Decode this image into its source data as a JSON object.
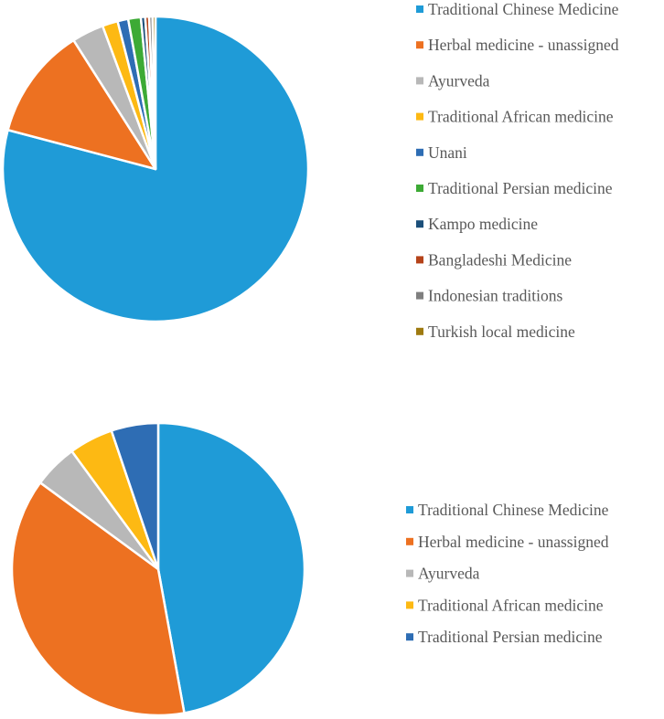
{
  "chart_data": [
    {
      "type": "pie",
      "title": "",
      "slices": [
        {
          "label": "Traditional Chinese Medicine",
          "value": 77.3,
          "color": "#1F9BD7"
        },
        {
          "label": "Herbal medicine - unassigned",
          "value": 11.6,
          "color": "#ED7121"
        },
        {
          "label": "Ayurveda",
          "value": 3.3,
          "color": "#B8B8B8"
        },
        {
          "label": "Traditional African medicine",
          "value": 1.6,
          "color": "#FDB913"
        },
        {
          "label": "Unani",
          "value": 1.1,
          "color": "#2E6DB4"
        },
        {
          "label": "Traditional Persian medicine",
          "value": 1.3,
          "color": "#3DAA35"
        },
        {
          "label": "Kampo medicine",
          "value": 0.45,
          "color": "#1B4F7A"
        },
        {
          "label": "Bangladeshi Medicine",
          "value": 0.4,
          "color": "#B5431A"
        },
        {
          "label": "Indonesian traditions",
          "value": 0.35,
          "color": "#7F7F7F"
        },
        {
          "label": "Turkish local medicine",
          "value": 0.3,
          "color": "#9E7A10"
        }
      ],
      "legend_position": "right"
    },
    {
      "type": "pie",
      "title": "",
      "slices": [
        {
          "label": "Traditional Chinese Medicine",
          "value": 45.5,
          "color": "#1F9BD7"
        },
        {
          "label": "Herbal medicine - unassigned",
          "value": 36.6,
          "color": "#ED7121"
        },
        {
          "label": "Ayurveda",
          "value": 4.7,
          "color": "#B8B8B8"
        },
        {
          "label": "Traditional African medicine",
          "value": 4.7,
          "color": "#FDB913"
        },
        {
          "label": "Traditional Persian medicine",
          "value": 5.0,
          "color": "#2E6DB4"
        }
      ],
      "legend_position": "right"
    }
  ]
}
